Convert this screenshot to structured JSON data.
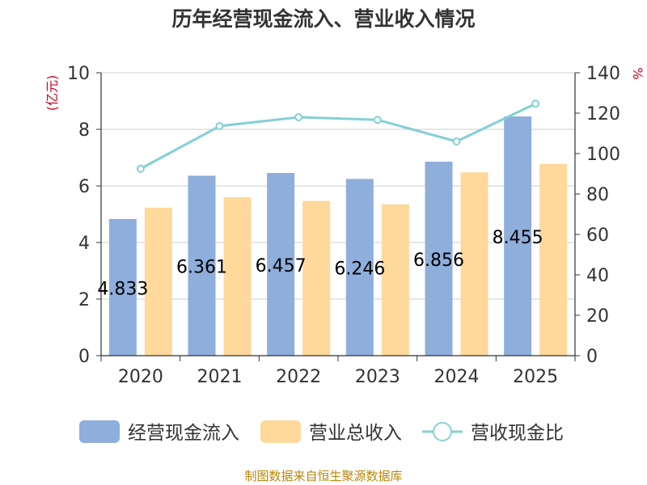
{
  "chart_data": {
    "type": "bar+line",
    "title": "历年经营现金流入、营业收入情况",
    "categories": [
      "2020",
      "2021",
      "2022",
      "2023",
      "2024",
      "2025"
    ],
    "series": [
      {
        "name": "经营现金流入",
        "kind": "bar",
        "axis": "left",
        "color": "#8eaedb",
        "values": [
          4.833,
          6.361,
          6.457,
          6.246,
          6.856,
          8.455
        ],
        "data_labels": [
          "4.833",
          "6.361",
          "6.457",
          "6.246",
          "6.856",
          "8.455"
        ]
      },
      {
        "name": "营业总收入",
        "kind": "bar",
        "axis": "left",
        "color": "#fed99b",
        "values": [
          5.23,
          5.6,
          5.47,
          5.35,
          6.48,
          6.78
        ]
      },
      {
        "name": "营收现金比",
        "kind": "line",
        "axis": "right",
        "color": "#84d0d5",
        "values": [
          92.5,
          113.6,
          118.0,
          116.7,
          106.0,
          124.7
        ]
      }
    ],
    "y_left": {
      "label": "(亿元)",
      "min": 0,
      "max": 10,
      "ticks": [
        "0",
        "2",
        "4",
        "6",
        "8",
        "10"
      ]
    },
    "y_right": {
      "label": "%",
      "min": 0,
      "max": 140,
      "ticks": [
        "0",
        "20",
        "40",
        "60",
        "80",
        "100",
        "120",
        "140"
      ]
    },
    "legend_position": "bottom",
    "grid": true
  },
  "source_note": "制图数据来自恒生聚源数据库"
}
